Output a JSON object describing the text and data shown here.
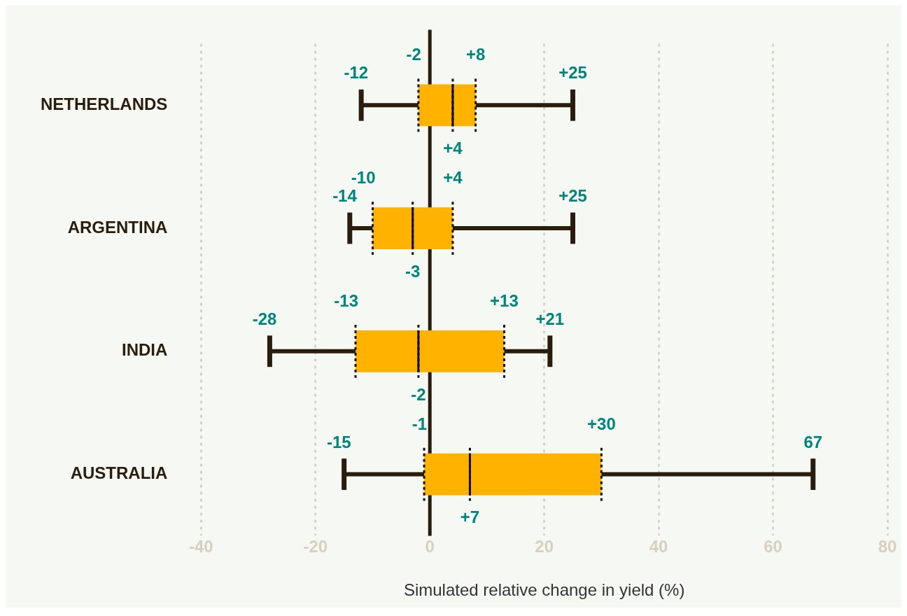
{
  "chart_data": {
    "type": "box",
    "orientation": "horizontal",
    "xlabel": "Simulated relative change in yield (%)",
    "categories": [
      "NETHERLANDS",
      "ARGENTINA",
      "INDIA",
      "AUSTRALIA"
    ],
    "boxes": [
      {
        "low": -12,
        "q1": -2,
        "median": 4,
        "q3": 8,
        "high": 25
      },
      {
        "low": -14,
        "q1": -10,
        "median": -3,
        "q3": 4,
        "high": 25
      },
      {
        "low": -28,
        "q1": -13,
        "median": -2,
        "q3": 13,
        "high": 21
      },
      {
        "low": -15,
        "q1": -1,
        "median": 7,
        "q3": 30,
        "high": 67
      }
    ],
    "value_labels": [
      [
        "-12",
        "-2",
        "+4",
        "+8",
        "+25"
      ],
      [
        "-14",
        "-10",
        "-3",
        "+4",
        "+25"
      ],
      [
        "-28",
        "-13",
        "-2",
        "+13",
        "+21"
      ],
      [
        "-15",
        "-1",
        "+7",
        "+30",
        "67"
      ]
    ],
    "color": "#ffb300",
    "xlim": [
      -40,
      80
    ],
    "xticks": [
      -40,
      -20,
      0,
      20,
      40,
      60,
      80
    ],
    "ref_lines": [
      {
        "axis": "x",
        "value": 0,
        "color": "#2b1d0e"
      }
    ],
    "grid": "x",
    "legend": false
  }
}
